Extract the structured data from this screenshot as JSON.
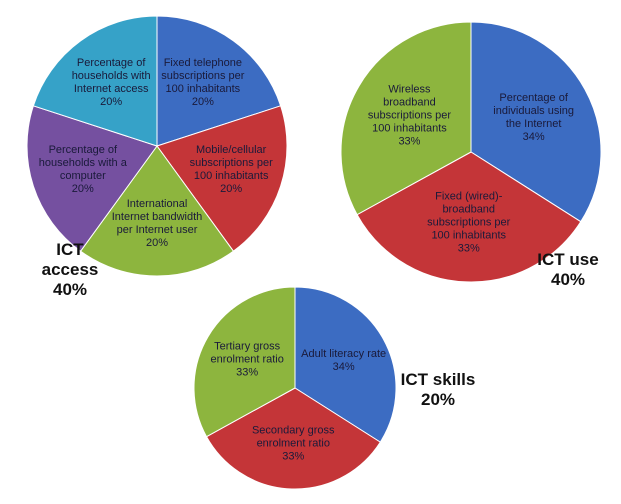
{
  "chart_data": [
    {
      "type": "pie",
      "title": "ICT access",
      "subtitle": "40%",
      "categories": [
        "Fixed telephone subscriptions per 100 inhabitants",
        "Mobile/cellular subscriptions per 100 inhabitants",
        "International Internet bandwidth per Internet user",
        "Percentage of households with a computer",
        "Percentage of households with Internet access"
      ],
      "values": [
        20,
        20,
        20,
        20,
        20
      ],
      "value_labels": [
        "20%",
        "20%",
        "20%",
        "20%",
        "20%"
      ],
      "colors": [
        "#3c6cc2",
        "#c43538",
        "#8db53e",
        "#7550a0",
        "#36a2c8"
      ]
    },
    {
      "type": "pie",
      "title": "ICT use",
      "subtitle": "40%",
      "categories": [
        "Percentage of individuals using the Internet",
        "Fixed (wired)-broadband subscriptions per 100 inhabitants",
        "Wireless broadband subscriptions per 100 inhabitants"
      ],
      "values": [
        34,
        33,
        33
      ],
      "value_labels": [
        "34%",
        "33%",
        "33%"
      ],
      "colors": [
        "#3c6cc2",
        "#c43538",
        "#8db53e"
      ]
    },
    {
      "type": "pie",
      "title": "ICT skills",
      "subtitle": "20%",
      "categories": [
        "Adult literacy rate",
        "Secondary gross enrolment ratio",
        "Tertiary gross enrolment ratio"
      ],
      "values": [
        34,
        33,
        33
      ],
      "value_labels": [
        "34%",
        "33%",
        "33%"
      ],
      "colors": [
        "#3c6cc2",
        "#c43538",
        "#8db53e"
      ]
    }
  ]
}
